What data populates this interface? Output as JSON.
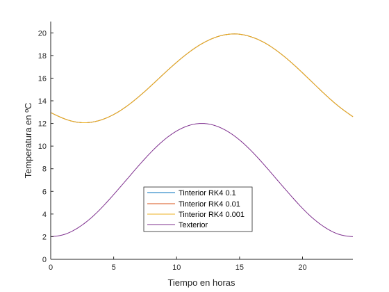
{
  "chart_data": {
    "type": "line",
    "title": "",
    "xlabel": "Tiempo en horas",
    "ylabel": "Temperatura en ºC",
    "xlim": [
      0,
      24
    ],
    "ylim": [
      0,
      21
    ],
    "xticks": [
      0,
      5,
      10,
      15,
      20
    ],
    "yticks": [
      0,
      2,
      4,
      6,
      8,
      10,
      12,
      14,
      16,
      18,
      20
    ],
    "grid": false,
    "legend_position": "bottom-center",
    "x": [
      0,
      1,
      2,
      3,
      4,
      5,
      6,
      7,
      8,
      9,
      10,
      11,
      12,
      13,
      14,
      15,
      16,
      17,
      18,
      19,
      20,
      21,
      22,
      23,
      24
    ],
    "series": [
      {
        "name": "Tinterior RK4 0.1",
        "color": "#0072BD",
        "values": [
          12.96,
          12.45,
          12.13,
          12.08,
          12.31,
          12.79,
          13.49,
          14.37,
          15.36,
          16.4,
          17.4,
          18.3,
          19.04,
          19.57,
          19.86,
          19.88,
          19.62,
          19.12,
          18.39,
          17.49,
          16.47,
          15.4,
          14.35,
          13.4,
          12.6
        ]
      },
      {
        "name": "Tinterior RK4 0.01",
        "color": "#D95319",
        "values": [
          12.96,
          12.45,
          12.13,
          12.08,
          12.31,
          12.79,
          13.49,
          14.37,
          15.36,
          16.4,
          17.4,
          18.3,
          19.04,
          19.57,
          19.86,
          19.88,
          19.62,
          19.12,
          18.39,
          17.49,
          16.47,
          15.4,
          14.35,
          13.4,
          12.6
        ]
      },
      {
        "name": "Tinterior RK4 0.001",
        "color": "#EDB120",
        "values": [
          12.96,
          12.45,
          12.13,
          12.08,
          12.31,
          12.79,
          13.49,
          14.37,
          15.36,
          16.4,
          17.4,
          18.3,
          19.04,
          19.57,
          19.86,
          19.88,
          19.62,
          19.12,
          18.39,
          17.49,
          16.47,
          15.4,
          14.35,
          13.4,
          12.6
        ]
      },
      {
        "name": "Texterior",
        "color": "#7E2F8E",
        "values": [
          2.0,
          2.17,
          2.67,
          3.46,
          4.5,
          5.72,
          7.0,
          8.29,
          9.5,
          10.54,
          11.33,
          11.83,
          12.0,
          11.83,
          11.33,
          10.54,
          9.5,
          8.29,
          7.0,
          5.72,
          4.5,
          3.46,
          2.67,
          2.17,
          2.0
        ]
      }
    ]
  }
}
